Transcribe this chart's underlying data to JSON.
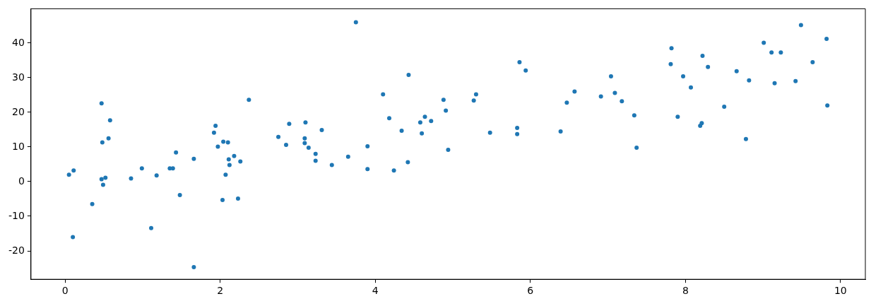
{
  "chart_data": {
    "type": "scatter",
    "xlim": [
      -0.44,
      10.32
    ],
    "ylim": [
      -28.2,
      49.9
    ],
    "xticks": [
      0,
      2,
      4,
      6,
      8,
      10
    ],
    "yticks": [
      -20,
      -10,
      0,
      10,
      20,
      30,
      40
    ],
    "grid": false,
    "legend": false,
    "marker": "circle",
    "series": [
      {
        "color": "#1f77b4",
        "x": [
          0.05,
          0.11,
          0.1,
          0.35,
          0.47,
          0.58,
          0.56,
          0.48,
          0.47,
          0.52,
          0.49,
          0.85,
          0.99,
          1.11,
          1.18,
          1.35,
          1.39,
          1.43,
          1.48,
          1.66,
          1.66,
          1.92,
          1.94,
          1.97,
          2.04,
          2.1,
          2.03,
          2.07,
          2.11,
          2.12,
          2.18,
          2.26,
          2.23,
          2.37,
          2.75,
          2.85,
          2.89,
          3.09,
          3.1,
          3.09,
          3.14,
          3.23,
          3.23,
          3.31,
          3.44,
          3.65,
          3.75,
          3.9,
          3.9,
          4.1,
          4.18,
          4.24,
          4.34,
          4.43,
          4.42,
          4.58,
          4.6,
          4.64,
          4.72,
          4.88,
          4.91,
          4.94,
          5.3,
          5.27,
          5.48,
          5.83,
          5.83,
          5.86,
          5.94,
          6.39,
          6.47,
          6.57,
          6.91,
          7.04,
          7.09,
          7.18,
          7.34,
          7.37,
          7.82,
          7.81,
          7.9,
          7.97,
          8.07,
          8.22,
          8.29,
          8.21,
          8.19,
          8.5,
          8.66,
          8.78,
          8.82,
          9.01,
          9.11,
          9.23,
          9.15,
          9.42,
          9.49,
          9.64,
          9.82,
          9.83
        ],
        "values": [
          2.0,
          3.2,
          -16.0,
          -6.5,
          22.6,
          17.7,
          12.5,
          11.3,
          0.7,
          1.1,
          -0.9,
          0.9,
          3.8,
          -13.4,
          1.8,
          3.8,
          3.8,
          8.4,
          -3.9,
          6.6,
          -24.7,
          14.1,
          16.1,
          10.1,
          11.5,
          11.3,
          -5.3,
          2.0,
          6.4,
          4.8,
          7.4,
          5.8,
          -4.9,
          23.6,
          12.9,
          10.6,
          16.7,
          12.5,
          17.1,
          11.1,
          9.8,
          8.0,
          6.0,
          14.9,
          4.8,
          7.2,
          46.0,
          10.2,
          3.6,
          25.2,
          18.3,
          3.2,
          14.7,
          30.8,
          5.6,
          17.1,
          13.9,
          18.7,
          17.5,
          23.6,
          20.5,
          9.2,
          25.2,
          23.4,
          14.1,
          15.5,
          13.7,
          34.5,
          32.1,
          14.5,
          22.8,
          26.0,
          24.6,
          30.4,
          25.6,
          23.2,
          19.1,
          9.8,
          38.5,
          33.9,
          18.7,
          30.4,
          27.2,
          36.3,
          33.1,
          16.9,
          16.1,
          21.6,
          31.9,
          12.3,
          29.2,
          40.1,
          37.3,
          37.3,
          28.4,
          29.0,
          45.2,
          34.5,
          41.2,
          22.0
        ]
      }
    ]
  }
}
